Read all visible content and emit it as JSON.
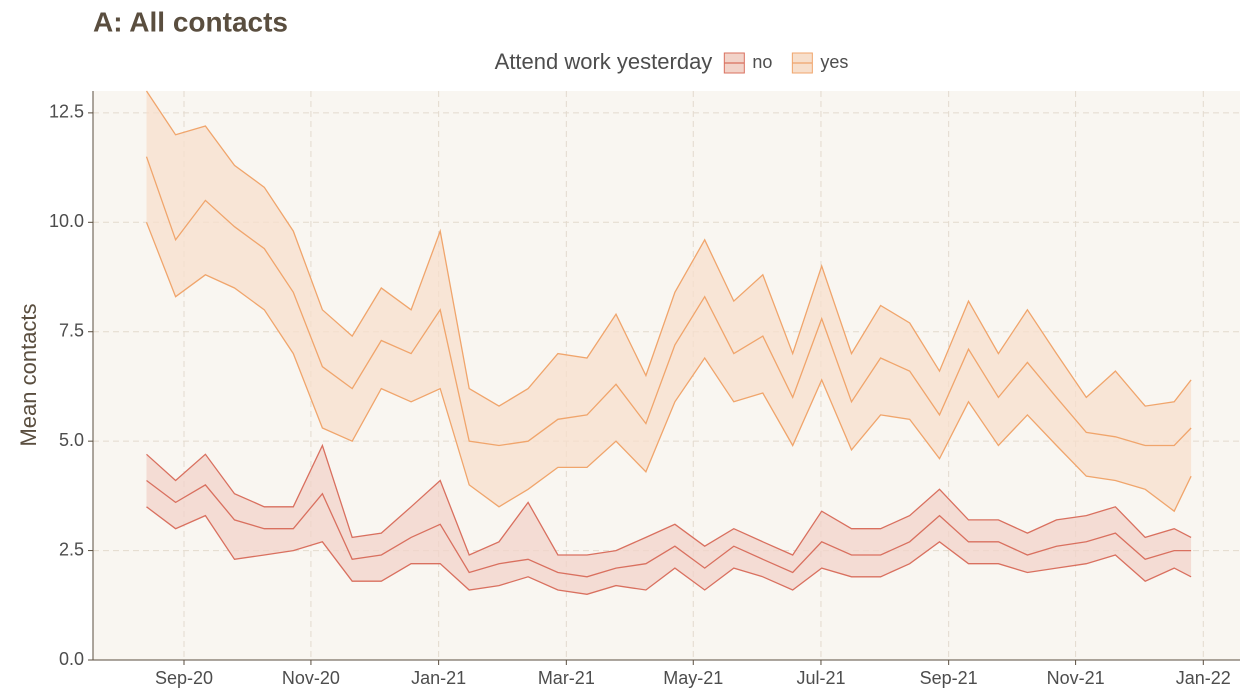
{
  "chart_data": {
    "type": "line",
    "title": "A: All contacts",
    "y_label": "Mean contacts",
    "legend_title": "Attend work yesterday",
    "legend_position": "top",
    "grid": true,
    "x": [
      2020.618,
      2020.656,
      2020.695,
      2020.733,
      2020.772,
      2020.81,
      2020.848,
      2020.887,
      2020.925,
      2020.964,
      2021.002,
      2021.04,
      2021.079,
      2021.117,
      2021.156,
      2021.194,
      2021.232,
      2021.271,
      2021.309,
      2021.348,
      2021.386,
      2021.424,
      2021.463,
      2021.501,
      2021.54,
      2021.578,
      2021.616,
      2021.655,
      2021.693,
      2021.732,
      2021.77,
      2021.808,
      2021.847,
      2021.885,
      2021.924,
      2021.962,
      2021.984
    ],
    "xlim": [
      2020.548,
      2022.048
    ],
    "xticks": [
      {
        "value": 2020.667,
        "label": "Sep-20"
      },
      {
        "value": 2020.833,
        "label": "Nov-20"
      },
      {
        "value": 2021.0,
        "label": "Jan-21"
      },
      {
        "value": 2021.167,
        "label": "Mar-21"
      },
      {
        "value": 2021.333,
        "label": "May-21"
      },
      {
        "value": 2021.5,
        "label": "Jul-21"
      },
      {
        "value": 2021.667,
        "label": "Sep-21"
      },
      {
        "value": 2021.833,
        "label": "Nov-21"
      },
      {
        "value": 2022.0,
        "label": "Jan-22"
      }
    ],
    "ylim": [
      0,
      13
    ],
    "yticks": [
      {
        "value": 0,
        "label": "0.0"
      },
      2.5,
      {
        "value": 5,
        "label": "5.0"
      },
      7.5,
      {
        "value": 10,
        "label": "10.0"
      },
      12.5
    ],
    "series": [
      {
        "name": "no",
        "color": "#d9705f",
        "fill": "#f2d3c9",
        "values": [
          4.1,
          3.6,
          4.0,
          3.2,
          3.0,
          3.0,
          3.8,
          2.3,
          2.4,
          2.8,
          3.1,
          2.0,
          2.2,
          2.3,
          2.0,
          1.9,
          2.1,
          2.2,
          2.6,
          2.1,
          2.6,
          2.3,
          2.0,
          2.7,
          2.4,
          2.4,
          2.7,
          3.3,
          2.7,
          2.7,
          2.4,
          2.6,
          2.7,
          2.9,
          2.3,
          2.5,
          2.5
        ],
        "upper": [
          4.7,
          4.1,
          4.7,
          3.8,
          3.5,
          3.5,
          4.9,
          2.8,
          2.9,
          3.5,
          4.1,
          2.4,
          2.7,
          3.6,
          2.4,
          2.4,
          2.5,
          2.8,
          3.1,
          2.6,
          3.0,
          2.7,
          2.4,
          3.4,
          3.0,
          3.0,
          3.3,
          3.9,
          3.2,
          3.2,
          2.9,
          3.2,
          3.3,
          3.5,
          2.8,
          3.0,
          2.8
        ],
        "lower": [
          3.5,
          3.0,
          3.3,
          2.3,
          2.4,
          2.5,
          2.7,
          1.8,
          1.8,
          2.2,
          2.2,
          1.6,
          1.7,
          1.9,
          1.6,
          1.5,
          1.7,
          1.6,
          2.1,
          1.6,
          2.1,
          1.9,
          1.6,
          2.1,
          1.9,
          1.9,
          2.2,
          2.7,
          2.2,
          2.2,
          2.0,
          2.1,
          2.2,
          2.4,
          1.8,
          2.1,
          1.9
        ]
      },
      {
        "name": "yes",
        "color": "#f0a56c",
        "fill": "#f7dfcc",
        "values": [
          11.5,
          9.6,
          10.5,
          9.9,
          9.4,
          8.4,
          6.7,
          6.2,
          7.3,
          7.0,
          8.0,
          5.0,
          4.9,
          5.0,
          5.5,
          5.6,
          6.3,
          5.4,
          7.2,
          8.3,
          7.0,
          7.4,
          6.0,
          7.8,
          5.9,
          6.9,
          6.6,
          5.6,
          7.1,
          6.0,
          6.8,
          6.0,
          5.2,
          5.1,
          4.9,
          4.9,
          5.3
        ],
        "upper": [
          13.0,
          12.0,
          12.2,
          11.3,
          10.8,
          9.8,
          8.0,
          7.4,
          8.5,
          8.0,
          9.8,
          6.2,
          5.8,
          6.2,
          7.0,
          6.9,
          7.9,
          6.5,
          8.4,
          9.6,
          8.2,
          8.8,
          7.0,
          9.0,
          7.0,
          8.1,
          7.7,
          6.6,
          8.2,
          7.0,
          8.0,
          7.0,
          6.0,
          6.6,
          5.8,
          5.9,
          6.4
        ],
        "lower": [
          10.0,
          8.3,
          8.8,
          8.5,
          8.0,
          7.0,
          5.3,
          5.0,
          6.2,
          5.9,
          6.2,
          4.0,
          3.5,
          3.9,
          4.4,
          4.4,
          5.0,
          4.3,
          5.9,
          6.9,
          5.9,
          6.1,
          4.9,
          6.4,
          4.8,
          5.6,
          5.5,
          4.6,
          5.9,
          4.9,
          5.6,
          4.9,
          4.2,
          4.1,
          3.9,
          3.4,
          4.2
        ]
      }
    ]
  }
}
